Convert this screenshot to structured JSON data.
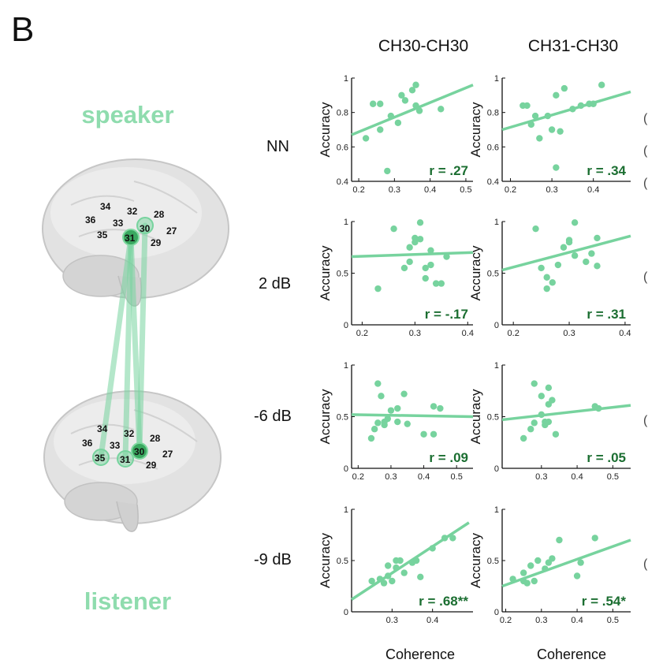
{
  "figure": {
    "panel_letter": "B",
    "speaker_label": "speaker",
    "listener_label": "listener",
    "row_labels": [
      "NN",
      "2 dB",
      "-6 dB",
      "-9 dB"
    ],
    "column_titles": [
      "CH30-CH30",
      "CH31-CH30"
    ],
    "y_axis_label": "Accuracy",
    "x_axis_label": "Coherence",
    "accent_color": "#77d39e",
    "line_color": "#77d39e",
    "r_label_color": "#1b6e31",
    "brain_color": "#e1e1e1"
  },
  "brain": {
    "speaker_channels": [
      "34",
      "32",
      "28",
      "36",
      "33",
      "30",
      "27",
      "35",
      "31",
      "29"
    ],
    "listener_channels": [
      "34",
      "32",
      "28",
      "36",
      "33",
      "30",
      "27",
      "35",
      "31",
      "29"
    ],
    "highlighted_speaker": [
      "31",
      "30"
    ],
    "highlighted_listener": [
      "35",
      "31",
      "30"
    ]
  },
  "chart_data": [
    {
      "type": "scatter",
      "row": "NN",
      "column": "CH30-CH30",
      "xlim": [
        0.18,
        0.52
      ],
      "ylim": [
        0.4,
        1.0
      ],
      "x_ticks": [
        "0.2",
        "0.3",
        "0.4",
        "0.5"
      ],
      "y_ticks": [
        "0.4",
        "0.6",
        "0.8",
        "1"
      ],
      "r_label": "r = .27",
      "points": [
        [
          0.22,
          0.65
        ],
        [
          0.24,
          0.85
        ],
        [
          0.26,
          0.7
        ],
        [
          0.26,
          0.85
        ],
        [
          0.28,
          0.46
        ],
        [
          0.29,
          0.78
        ],
        [
          0.31,
          0.74
        ],
        [
          0.32,
          0.9
        ],
        [
          0.33,
          0.87
        ],
        [
          0.35,
          0.93
        ],
        [
          0.36,
          0.96
        ],
        [
          0.36,
          0.84
        ],
        [
          0.37,
          0.81
        ],
        [
          0.43,
          0.82
        ]
      ],
      "fit": [
        [
          0.18,
          0.67
        ],
        [
          0.52,
          0.96
        ]
      ]
    },
    {
      "type": "scatter",
      "row": "NN",
      "column": "CH31-CH30",
      "xlim": [
        0.18,
        0.49
      ],
      "ylim": [
        0.4,
        1.0
      ],
      "x_ticks": [
        "0.2",
        "0.3",
        "0.4"
      ],
      "y_ticks": [
        "0.4",
        "0.6",
        "0.8",
        "1"
      ],
      "r_label": "r = .34",
      "points": [
        [
          0.23,
          0.84
        ],
        [
          0.24,
          0.84
        ],
        [
          0.25,
          0.73
        ],
        [
          0.26,
          0.78
        ],
        [
          0.27,
          0.65
        ],
        [
          0.29,
          0.78
        ],
        [
          0.3,
          0.7
        ],
        [
          0.31,
          0.9
        ],
        [
          0.31,
          0.48
        ],
        [
          0.32,
          0.69
        ],
        [
          0.33,
          0.94
        ],
        [
          0.35,
          0.82
        ],
        [
          0.37,
          0.84
        ],
        [
          0.39,
          0.85
        ],
        [
          0.4,
          0.85
        ],
        [
          0.42,
          0.96
        ]
      ],
      "fit": [
        [
          0.18,
          0.7
        ],
        [
          0.49,
          0.92
        ]
      ]
    },
    {
      "type": "scatter",
      "row": "2 dB",
      "column": "CH30-CH30",
      "xlim": [
        0.18,
        0.41
      ],
      "ylim": [
        0.0,
        1.0
      ],
      "x_ticks": [
        "0.2",
        "0.3",
        "0.4"
      ],
      "y_ticks": [
        "0",
        "0.5",
        "1"
      ],
      "r_label": "r = -.17",
      "points": [
        [
          0.23,
          0.35
        ],
        [
          0.26,
          0.93
        ],
        [
          0.28,
          0.55
        ],
        [
          0.29,
          0.61
        ],
        [
          0.29,
          0.75
        ],
        [
          0.3,
          0.8
        ],
        [
          0.3,
          0.84
        ],
        [
          0.31,
          0.99
        ],
        [
          0.31,
          0.83
        ],
        [
          0.32,
          0.45
        ],
        [
          0.32,
          0.55
        ],
        [
          0.33,
          0.58
        ],
        [
          0.33,
          0.72
        ],
        [
          0.34,
          0.4
        ],
        [
          0.35,
          0.4
        ],
        [
          0.36,
          0.66
        ]
      ],
      "fit": [
        [
          0.18,
          0.66
        ],
        [
          0.41,
          0.7
        ]
      ]
    },
    {
      "type": "scatter",
      "row": "2 dB",
      "column": "CH31-CH30",
      "xlim": [
        0.18,
        0.41
      ],
      "ylim": [
        0.0,
        1.0
      ],
      "x_ticks": [
        "0.2",
        "0.3",
        "0.4"
      ],
      "y_ticks": [
        "0",
        "0.5",
        "1"
      ],
      "r_label": "r = .31",
      "points": [
        [
          0.24,
          0.93
        ],
        [
          0.25,
          0.55
        ],
        [
          0.26,
          0.46
        ],
        [
          0.26,
          0.35
        ],
        [
          0.27,
          0.41
        ],
        [
          0.28,
          0.58
        ],
        [
          0.29,
          0.75
        ],
        [
          0.3,
          0.8
        ],
        [
          0.3,
          0.82
        ],
        [
          0.31,
          0.99
        ],
        [
          0.31,
          0.67
        ],
        [
          0.33,
          0.61
        ],
        [
          0.34,
          0.69
        ],
        [
          0.35,
          0.84
        ],
        [
          0.35,
          0.57
        ]
      ],
      "fit": [
        [
          0.18,
          0.53
        ],
        [
          0.41,
          0.86
        ]
      ]
    },
    {
      "type": "scatter",
      "row": "-6 dB",
      "column": "CH30-CH30",
      "xlim": [
        0.18,
        0.55
      ],
      "ylim": [
        0.0,
        1.0
      ],
      "x_ticks": [
        "0.2",
        "0.3",
        "0.4",
        "0.5"
      ],
      "y_ticks": [
        "0",
        "0.5",
        "1"
      ],
      "r_label": "r = .09",
      "points": [
        [
          0.24,
          0.29
        ],
        [
          0.25,
          0.38
        ],
        [
          0.26,
          0.82
        ],
        [
          0.26,
          0.44
        ],
        [
          0.27,
          0.7
        ],
        [
          0.28,
          0.42
        ],
        [
          0.28,
          0.45
        ],
        [
          0.29,
          0.48
        ],
        [
          0.3,
          0.56
        ],
        [
          0.32,
          0.58
        ],
        [
          0.32,
          0.45
        ],
        [
          0.34,
          0.72
        ],
        [
          0.35,
          0.43
        ],
        [
          0.4,
          0.33
        ],
        [
          0.43,
          0.33
        ],
        [
          0.43,
          0.6
        ],
        [
          0.45,
          0.58
        ]
      ],
      "fit": [
        [
          0.18,
          0.52
        ],
        [
          0.55,
          0.5
        ]
      ]
    },
    {
      "type": "scatter",
      "row": "-6 dB",
      "column": "CH31-CH30",
      "xlim": [
        0.19,
        0.55
      ],
      "ylim": [
        0.0,
        1.0
      ],
      "x_ticks": [
        "0.3",
        "0.4",
        "0.5"
      ],
      "y_ticks": [
        "0",
        "0.5",
        "1"
      ],
      "r_label": "r = .05",
      "points": [
        [
          0.25,
          0.29
        ],
        [
          0.27,
          0.38
        ],
        [
          0.28,
          0.82
        ],
        [
          0.28,
          0.44
        ],
        [
          0.3,
          0.7
        ],
        [
          0.3,
          0.52
        ],
        [
          0.31,
          0.45
        ],
        [
          0.31,
          0.42
        ],
        [
          0.32,
          0.45
        ],
        [
          0.32,
          0.62
        ],
        [
          0.32,
          0.78
        ],
        [
          0.33,
          0.66
        ],
        [
          0.34,
          0.33
        ],
        [
          0.45,
          0.6
        ],
        [
          0.46,
          0.58
        ]
      ],
      "fit": [
        [
          0.19,
          0.47
        ],
        [
          0.55,
          0.61
        ]
      ]
    },
    {
      "type": "scatter",
      "row": "-9 dB",
      "column": "CH30-CH30",
      "xlim": [
        0.2,
        0.5
      ],
      "ylim": [
        0.0,
        1.0
      ],
      "x_ticks": [
        "0.3",
        "0.4"
      ],
      "y_ticks": [
        "0",
        "0.5",
        "1"
      ],
      "r_label": "r = .68**",
      "points": [
        [
          0.25,
          0.3
        ],
        [
          0.27,
          0.32
        ],
        [
          0.28,
          0.28
        ],
        [
          0.29,
          0.35
        ],
        [
          0.29,
          0.45
        ],
        [
          0.3,
          0.3
        ],
        [
          0.31,
          0.5
        ],
        [
          0.31,
          0.43
        ],
        [
          0.32,
          0.5
        ],
        [
          0.33,
          0.38
        ],
        [
          0.35,
          0.48
        ],
        [
          0.36,
          0.5
        ],
        [
          0.37,
          0.34
        ],
        [
          0.4,
          0.62
        ],
        [
          0.43,
          0.72
        ],
        [
          0.45,
          0.72
        ]
      ],
      "fit": [
        [
          0.2,
          0.12
        ],
        [
          0.49,
          0.87
        ]
      ]
    },
    {
      "type": "scatter",
      "row": "-9 dB",
      "column": "CH31-CH30",
      "xlim": [
        0.19,
        0.55
      ],
      "ylim": [
        0.0,
        1.0
      ],
      "x_ticks": [
        "0.2",
        "0.3",
        "0.4",
        "0.5"
      ],
      "y_ticks": [
        "0",
        "0.5",
        "1"
      ],
      "r_label": "r = .54*",
      "points": [
        [
          0.22,
          0.32
        ],
        [
          0.25,
          0.3
        ],
        [
          0.25,
          0.38
        ],
        [
          0.26,
          0.28
        ],
        [
          0.27,
          0.45
        ],
        [
          0.28,
          0.3
        ],
        [
          0.29,
          0.5
        ],
        [
          0.31,
          0.42
        ],
        [
          0.32,
          0.48
        ],
        [
          0.33,
          0.52
        ],
        [
          0.35,
          0.7
        ],
        [
          0.4,
          0.35
        ],
        [
          0.41,
          0.48
        ],
        [
          0.45,
          0.72
        ]
      ],
      "fit": [
        [
          0.19,
          0.25
        ],
        [
          0.55,
          0.7
        ]
      ]
    }
  ]
}
